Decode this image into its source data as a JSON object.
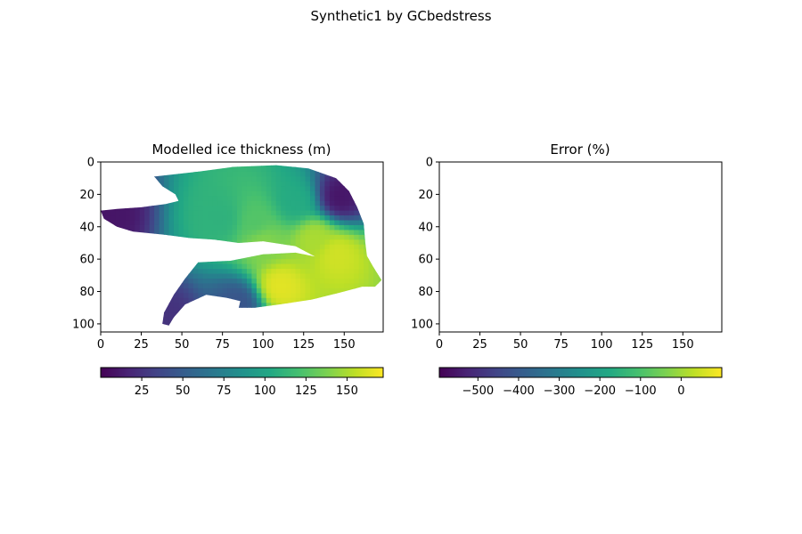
{
  "figure": {
    "suptitle": "Synthetic1 by GCbedstress"
  },
  "colormap": [
    "#440154",
    "#482475",
    "#414487",
    "#355f8d",
    "#2a788e",
    "#21918c",
    "#22a884",
    "#44bf70",
    "#7ad151",
    "#bddf26",
    "#fde725"
  ],
  "chart_data": [
    {
      "type": "heatmap",
      "title": "Modelled ice thickness (m)",
      "xlabel": "",
      "ylabel": "",
      "xlim": [
        0,
        174
      ],
      "ylim": [
        105,
        0
      ],
      "xticks": [
        0,
        25,
        50,
        75,
        100,
        125,
        150
      ],
      "yticks": [
        0,
        20,
        40,
        60,
        80,
        100
      ],
      "colorbar": {
        "orientation": "horizontal",
        "range": [
          0,
          172
        ],
        "ticks": [
          25,
          50,
          75,
          100,
          125,
          150
        ],
        "tick_labels": [
          "25",
          "50",
          "75",
          "100",
          "125",
          "150"
        ]
      },
      "region": {
        "upper_lobe_outline": [
          [
            33,
            9
          ],
          [
            60,
            6
          ],
          [
            82,
            3
          ],
          [
            108,
            2
          ],
          [
            128,
            4
          ],
          [
            145,
            10
          ],
          [
            153,
            18
          ],
          [
            158,
            28
          ],
          [
            162,
            38
          ],
          [
            163,
            50
          ],
          [
            164,
            58
          ],
          [
            168,
            65
          ],
          [
            173,
            73
          ],
          [
            169,
            77
          ],
          [
            160,
            77
          ],
          [
            150,
            76
          ],
          [
            142,
            70
          ],
          [
            135,
            60
          ],
          [
            120,
            52
          ],
          [
            100,
            49
          ],
          [
            85,
            50
          ],
          [
            70,
            48
          ],
          [
            55,
            47
          ],
          [
            40,
            45
          ],
          [
            20,
            43
          ],
          [
            10,
            40
          ],
          [
            2,
            35
          ],
          [
            0,
            30
          ],
          [
            10,
            29
          ],
          [
            25,
            28
          ],
          [
            40,
            26
          ],
          [
            48,
            24
          ],
          [
            46,
            20
          ],
          [
            38,
            15
          ]
        ],
        "lower_lobe_outline": [
          [
            60,
            62
          ],
          [
            80,
            61
          ],
          [
            100,
            57
          ],
          [
            120,
            56
          ],
          [
            140,
            60
          ],
          [
            155,
            70
          ],
          [
            165,
            76
          ],
          [
            150,
            80
          ],
          [
            130,
            85
          ],
          [
            110,
            88
          ],
          [
            95,
            90
          ],
          [
            85,
            90
          ],
          [
            86,
            86
          ],
          [
            78,
            84
          ],
          [
            65,
            82
          ],
          [
            52,
            88
          ],
          [
            45,
            96
          ],
          [
            42,
            101
          ],
          [
            38,
            100
          ],
          [
            39,
            93
          ],
          [
            45,
            82
          ],
          [
            52,
            72
          ]
        ],
        "value_range": [
          0,
          172
        ],
        "hotspots": [
          {
            "x": 110,
            "y": 77,
            "value": 165
          },
          {
            "x": 145,
            "y": 57,
            "value": 160
          },
          {
            "x": 132,
            "y": 47,
            "value": 150
          },
          {
            "x": 95,
            "y": 37,
            "value": 125
          },
          {
            "x": 75,
            "y": 35,
            "value": 110
          },
          {
            "x": 100,
            "y": 50,
            "value": 140
          },
          {
            "x": 120,
            "y": 25,
            "value": 105
          }
        ],
        "lowspots": [
          {
            "x": 147,
            "y": 22,
            "value": 10
          },
          {
            "x": 40,
            "y": 97,
            "value": 25
          },
          {
            "x": 3,
            "y": 32,
            "value": 10
          },
          {
            "x": 85,
            "y": 88,
            "value": 45
          }
        ]
      }
    },
    {
      "type": "heatmap",
      "title": "Error (%)",
      "xlabel": "",
      "ylabel": "",
      "xlim": [
        0,
        174
      ],
      "ylim": [
        105,
        0
      ],
      "xticks": [
        0,
        25,
        50,
        75,
        100,
        125,
        150
      ],
      "yticks": [
        0,
        20,
        40,
        60,
        80,
        100
      ],
      "colorbar": {
        "orientation": "horizontal",
        "range": [
          -595,
          100
        ],
        "ticks": [
          -500,
          -400,
          -300,
          -200,
          -100,
          0
        ],
        "tick_labels": [
          "−500",
          "−400",
          "−300",
          "−200",
          "−100",
          "0"
        ]
      },
      "region": null
    }
  ]
}
